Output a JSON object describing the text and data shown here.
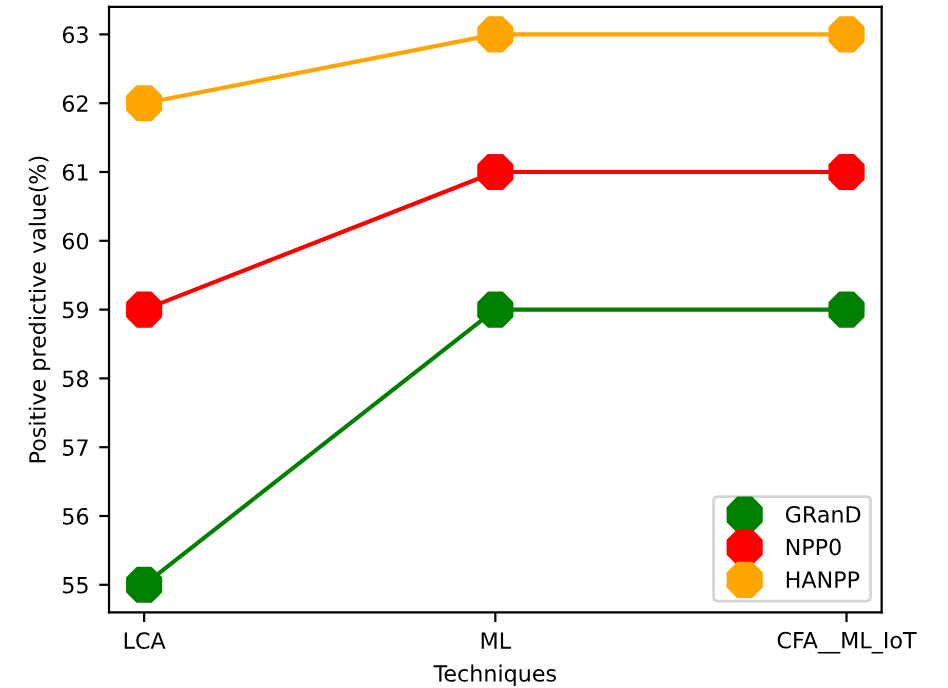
{
  "chart_data": {
    "type": "line",
    "xlabel": "Techniques",
    "ylabel": "Positive predictive value(%)",
    "categories": [
      "LCA",
      "ML",
      "CFA__ML_IoT"
    ],
    "series": [
      {
        "name": "GRanD",
        "color": "#008000",
        "values": [
          55,
          59,
          59
        ]
      },
      {
        "name": "NPP0",
        "color": "#ff0000",
        "values": [
          59,
          61,
          61
        ]
      },
      {
        "name": "HANPP",
        "color": "#ffa500",
        "values": [
          62,
          63,
          63
        ]
      }
    ],
    "ylim": [
      54.6,
      63.4
    ],
    "yticks": [
      55,
      56,
      57,
      58,
      59,
      60,
      61,
      62,
      63
    ],
    "marker": "circle",
    "line_style": "solid",
    "legend": "bottom right",
    "grid": false
  }
}
